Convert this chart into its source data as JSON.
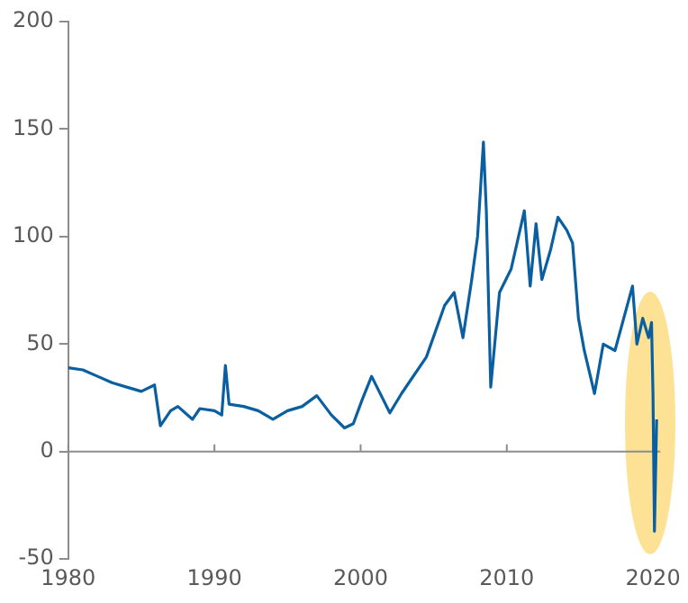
{
  "chart_data": {
    "type": "line",
    "x": [
      1980,
      1981,
      1982,
      1983,
      1984,
      1985,
      1985.9,
      1986.3,
      1987,
      1987.5,
      1988.5,
      1989,
      1990,
      1990.5,
      1990.75,
      1991,
      1992,
      1993,
      1994,
      1995,
      1996,
      1997,
      1998,
      1998.9,
      1999.5,
      2000.1,
      2000.75,
      2002,
      2002.8,
      2004.5,
      2005.75,
      2006.4,
      2007,
      2007.6,
      2008,
      2008.4,
      2008.6,
      2008.9,
      2009.5,
      2010.3,
      2011.2,
      2011.6,
      2012,
      2012.4,
      2013,
      2013.5,
      2014.1,
      2014.5,
      2014.9,
      2015.3,
      2016,
      2016.6,
      2017.4,
      2018,
      2018.6,
      2018.9,
      2019.3,
      2019.7,
      2019.9,
      2020,
      2020.1,
      2020.25
    ],
    "series": [
      {
        "color": "#0a5fa0",
        "values": [
          39,
          38,
          35,
          32,
          30,
          28,
          31,
          12,
          19,
          21,
          15,
          20,
          19,
          17,
          40,
          22,
          21,
          19,
          15,
          19,
          21,
          26,
          17,
          11,
          13,
          24,
          35,
          18,
          27,
          44,
          68,
          74,
          53,
          80,
          100,
          144,
          112,
          30,
          74,
          85,
          112,
          77,
          106,
          80,
          94,
          109,
          103,
          97,
          62,
          47,
          27,
          50,
          47,
          62,
          77,
          50,
          62,
          53,
          60,
          27,
          -37,
          15
        ]
      }
    ],
    "xlim": [
      1980,
      2020.5
    ],
    "xticks": [
      1980,
      1990,
      2000,
      2010,
      2020
    ],
    "ylim": [
      -50,
      200
    ],
    "yticks": [
      -50,
      0,
      50,
      100,
      150,
      200
    ],
    "grid": false,
    "ref_lines": [
      {
        "axis": "y",
        "value": 0,
        "color": "#8c8c8c"
      }
    ],
    "legend": false,
    "marker": "none",
    "line_style": "solid"
  }
}
